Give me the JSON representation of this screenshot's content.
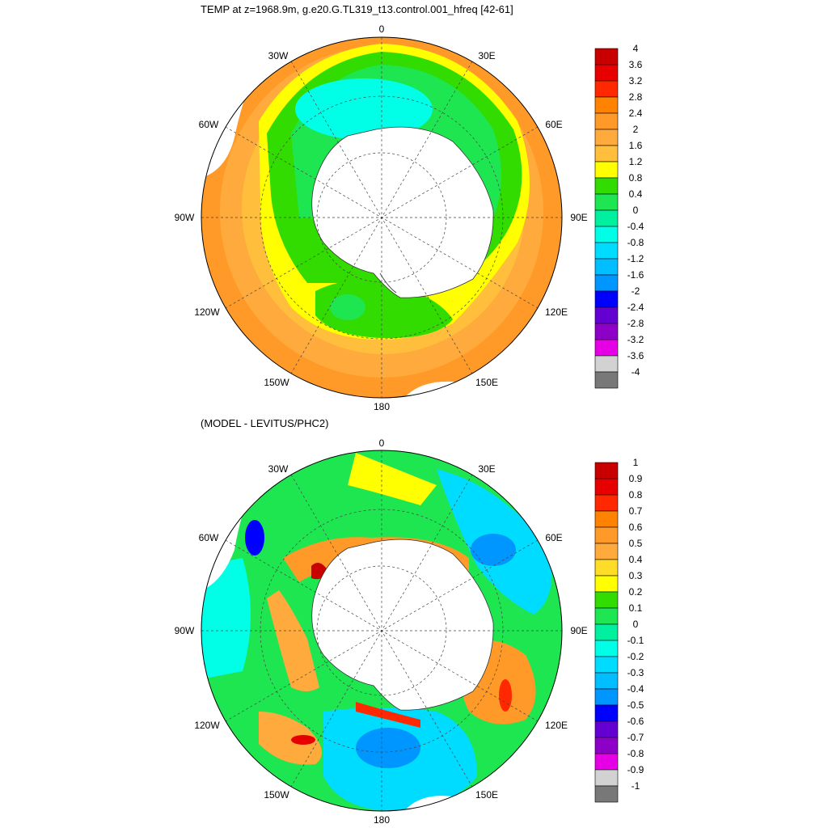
{
  "top_panel": {
    "title": "TEMP at z=1968.9m, g.e20.G.TL319_t13.control.001_hfreq [42-61]",
    "lon_labels": [
      "0",
      "30E",
      "60E",
      "90E",
      "120E",
      "150E",
      "180",
      "150W",
      "120W",
      "90W",
      "60W",
      "30W"
    ],
    "colorbar": {
      "labels": [
        "4",
        "3.6",
        "3.2",
        "2.8",
        "2.4",
        "2",
        "1.6",
        "1.2",
        "0.8",
        "0.4",
        "0",
        "-0.4",
        "-0.8",
        "-1.2",
        "-1.6",
        "-2",
        "-2.4",
        "-2.8",
        "-3.2",
        "-3.6",
        "-4"
      ],
      "colors": [
        "#c80000",
        "#e60000",
        "#ff2800",
        "#ff8200",
        "#ff9a28",
        "#ffaa3c",
        "#ffbe3c",
        "#ffff00",
        "#32dc00",
        "#1ee650",
        "#00f0a0",
        "#00ffe6",
        "#00dcff",
        "#00beff",
        "#0096ff",
        "#0000ff",
        "#6400d2",
        "#8c00c8",
        "#e600e6",
        "#d2d2d2",
        "#787878"
      ]
    }
  },
  "bottom_panel": {
    "title": "(MODEL - LEVITUS/PHC2)",
    "lon_labels": [
      "0",
      "30E",
      "60E",
      "90E",
      "120E",
      "150E",
      "180",
      "150W",
      "120W",
      "90W",
      "60W",
      "30W"
    ],
    "colorbar": {
      "labels": [
        "1",
        "0.9",
        "0.8",
        "0.7",
        "0.6",
        "0.5",
        "0.4",
        "0.3",
        "0.2",
        "0.1",
        "0",
        "-0.1",
        "-0.2",
        "-0.3",
        "-0.4",
        "-0.5",
        "-0.6",
        "-0.7",
        "-0.8",
        "-0.9",
        "-1"
      ],
      "colors": [
        "#c80000",
        "#e60000",
        "#ff2800",
        "#ff8200",
        "#ff9a28",
        "#ffaa3c",
        "#ffdc28",
        "#ffff00",
        "#32dc00",
        "#1ee650",
        "#00f0a0",
        "#00ffe6",
        "#00dcff",
        "#00beff",
        "#0096ff",
        "#0000ff",
        "#6400d2",
        "#8c00c8",
        "#e600e6",
        "#d2d2d2",
        "#787878"
      ]
    }
  }
}
